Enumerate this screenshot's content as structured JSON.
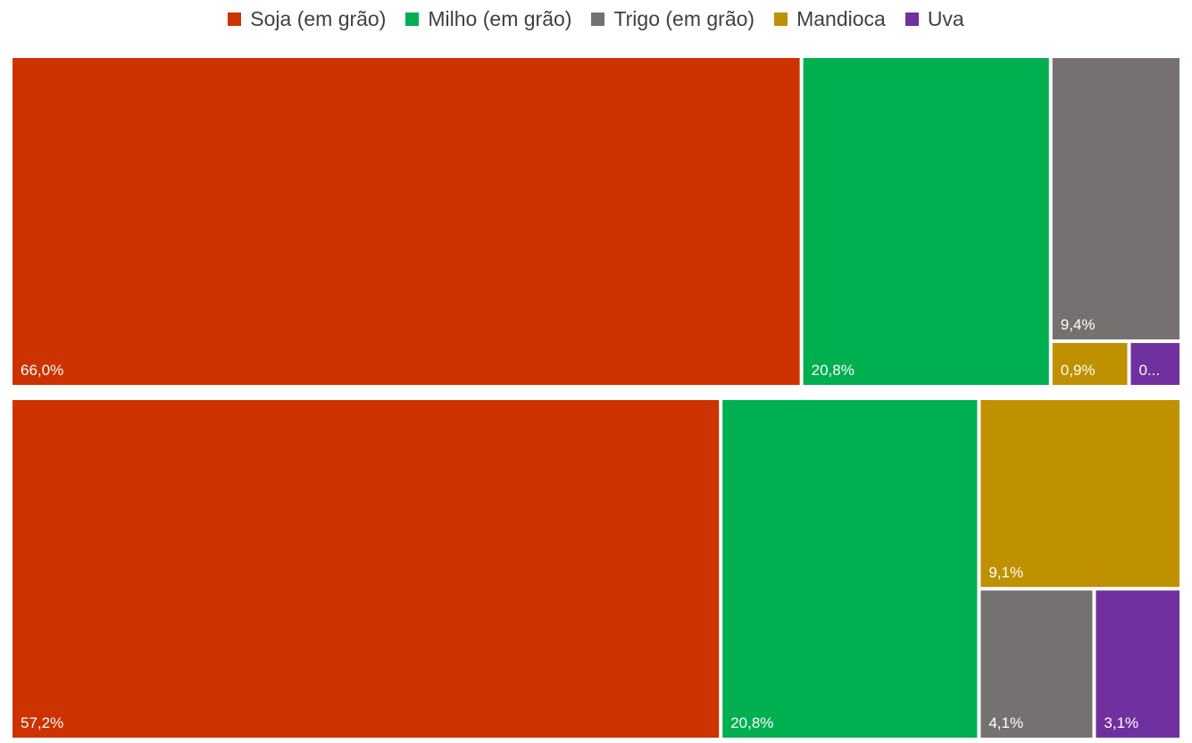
{
  "chart_data": {
    "type": "treemap",
    "legend_position": "top",
    "series": [
      {
        "name": "Soja (em grão)",
        "color": "#CC3300"
      },
      {
        "name": "Milho (em grão)",
        "color": "#00B050"
      },
      {
        "name": "Trigo (em grão)",
        "color": "#767171"
      },
      {
        "name": "Mandioca",
        "color": "#BF9000"
      },
      {
        "name": "Uva",
        "color": "#7030A0"
      }
    ],
    "groups": [
      {
        "tiles": [
          {
            "series": "Soja (em grão)",
            "value": 66.0,
            "label": "66,0%"
          },
          {
            "series": "Milho (em grão)",
            "value": 20.8,
            "label": "20,8%"
          },
          {
            "series": "Trigo (em grão)",
            "value": 9.4,
            "label": "9,4%"
          },
          {
            "series": "Mandioca",
            "value": 0.9,
            "label": "0,9%"
          },
          {
            "series": "Uva",
            "value": 0.6,
            "label": "0..."
          }
        ]
      },
      {
        "tiles": [
          {
            "series": "Soja (em grão)",
            "value": 57.2,
            "label": "57,2%"
          },
          {
            "series": "Milho (em grão)",
            "value": 20.8,
            "label": "20,8%"
          },
          {
            "series": "Mandioca",
            "value": 9.1,
            "label": "9,1%"
          },
          {
            "series": "Trigo (em grão)",
            "value": 4.1,
            "label": "4,1%"
          },
          {
            "series": "Uva",
            "value": 3.1,
            "label": "3,1%"
          }
        ]
      }
    ]
  }
}
